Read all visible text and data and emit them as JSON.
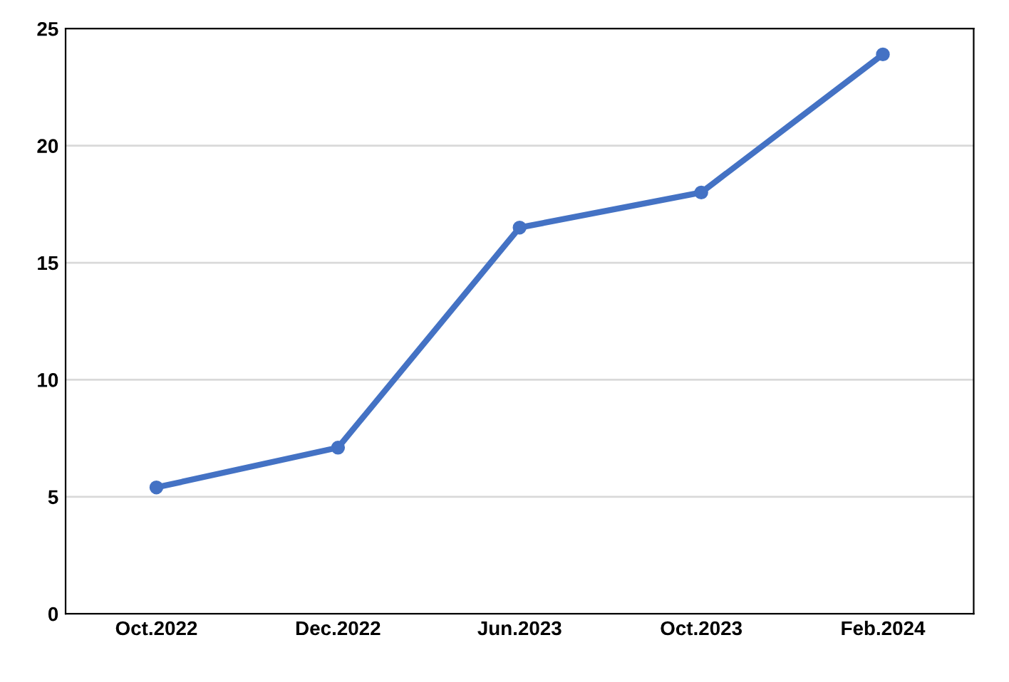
{
  "chart_data": {
    "type": "line",
    "categories": [
      "Oct.2022",
      "Dec.2022",
      "Jun.2023",
      "Oct.2023",
      "Feb.2024"
    ],
    "series": [
      {
        "color": "#4472c4",
        "values": [
          5.4,
          7.1,
          16.5,
          18.0,
          23.9
        ]
      }
    ],
    "ylim": [
      0,
      25
    ],
    "yticks": [
      0,
      5,
      10,
      15,
      20,
      25
    ],
    "grid": "y",
    "marker": "circle",
    "line_style": "solid"
  }
}
